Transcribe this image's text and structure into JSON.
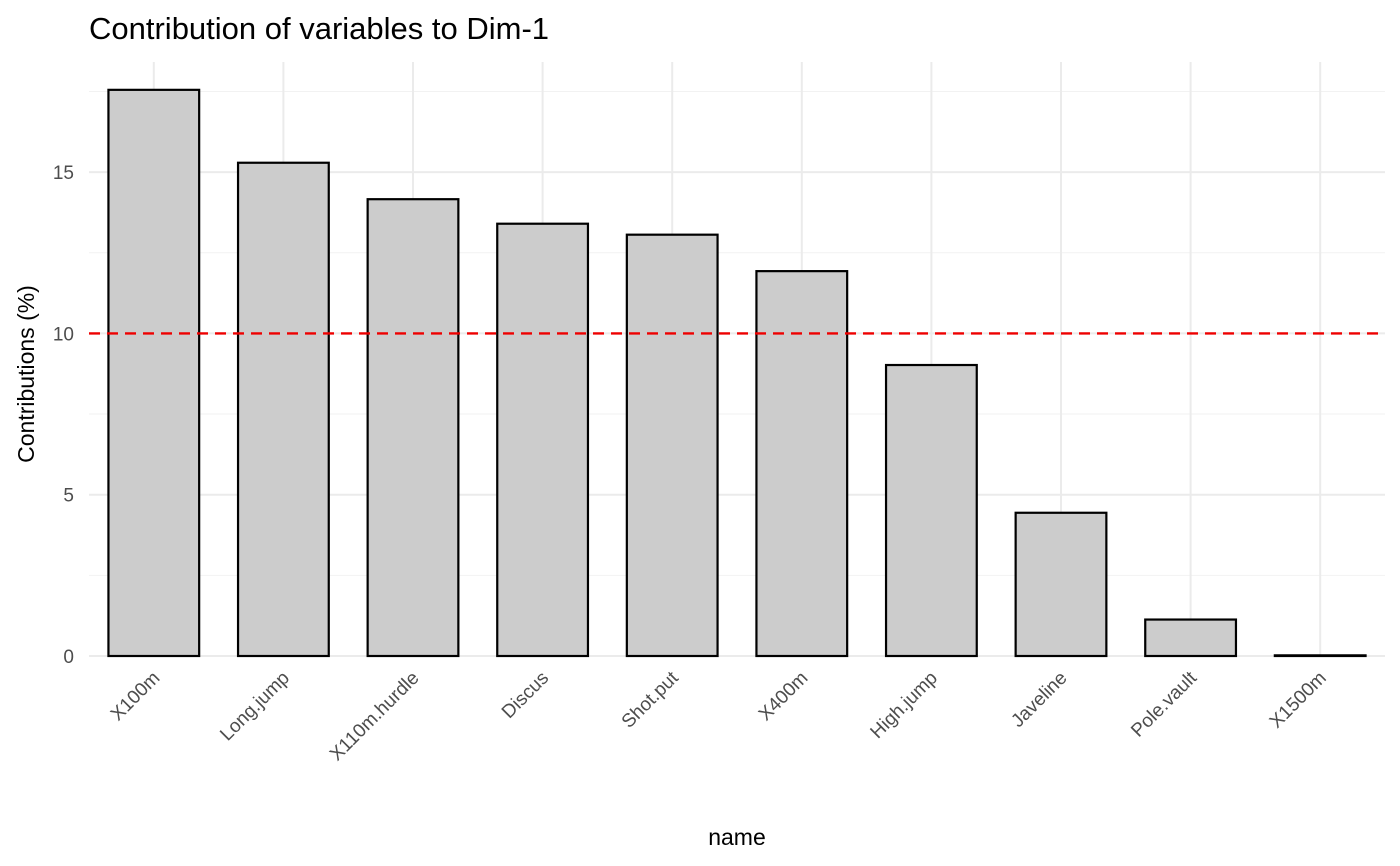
{
  "chart_data": {
    "type": "bar",
    "title": "Contribution of variables to Dim-1",
    "xlabel": "name",
    "ylabel": "Contributions (%)",
    "categories": [
      "X100m",
      "Long.jump",
      "X110m.hurdle",
      "Discus",
      "Shot.put",
      "X400m",
      "High.jump",
      "Javeline",
      "Pole.vault",
      "X1500m"
    ],
    "values": [
      17.55,
      15.29,
      14.16,
      13.4,
      13.06,
      11.93,
      9.02,
      4.44,
      1.13,
      0.02
    ],
    "ylim": [
      0,
      18.3
    ],
    "y_ticks": [
      0,
      5,
      10,
      15
    ],
    "y_tick_labels": [
      "0",
      "5",
      "10",
      "15"
    ],
    "reference_line": {
      "value": 10,
      "color": "#ee0000",
      "style": "dashed"
    },
    "bar_fill": "#cccccc",
    "bar_border": "#000000",
    "grid": true,
    "legend": "none",
    "x_tick_rotation_deg": 45
  }
}
